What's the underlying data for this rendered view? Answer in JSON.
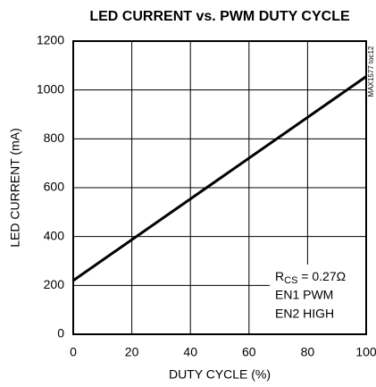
{
  "chart_data": {
    "type": "line",
    "title": "LED CURRENT vs. PWM DUTY CYCLE",
    "x_label": "DUTY CYCLE (%)",
    "y_label": "LED CURRENT (mA)",
    "figure_id": "MAX1577 toc12",
    "x": [
      0,
      100
    ],
    "series": [
      {
        "name": "LED current",
        "color": "#000000",
        "values": [
          220,
          1055
        ]
      }
    ],
    "xlim": [
      0,
      100
    ],
    "xticks": [
      0,
      20,
      40,
      60,
      80,
      100
    ],
    "ylim": [
      0,
      1200
    ],
    "yticks": [
      0,
      200,
      400,
      600,
      800,
      1000,
      1200
    ],
    "grid": true,
    "annotations": [
      [
        "R",
        "CS",
        " = 0.27Ω"
      ],
      "EN1 PWM",
      "EN2 HIGH"
    ]
  }
}
